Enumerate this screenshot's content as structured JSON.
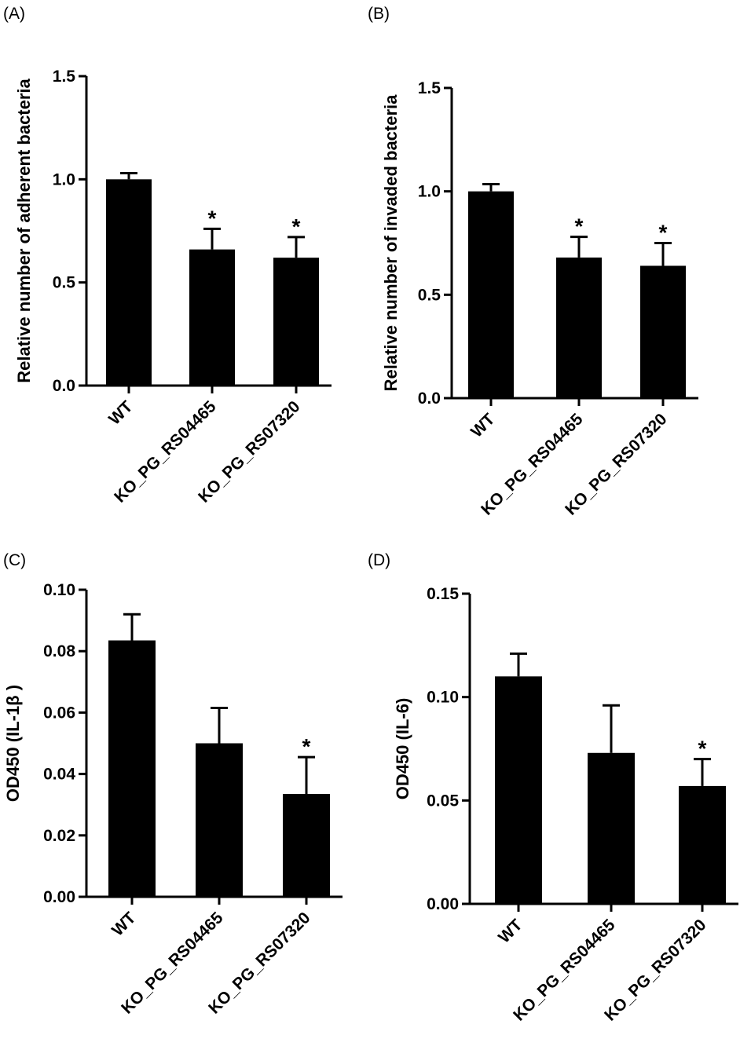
{
  "chart_data": [
    {
      "type": "bar",
      "panel_label": "(A)",
      "categories": [
        "WT",
        "KO_PG_RS04465",
        "KO_PG_RS07320"
      ],
      "values": [
        1.0,
        0.66,
        0.62
      ],
      "errors": [
        0.03,
        0.1,
        0.1
      ],
      "significance": [
        "",
        "*",
        "*"
      ],
      "ylabel": "Relative number of adherent bacteria",
      "ylim": [
        0,
        1.5
      ],
      "yticks": [
        0.0,
        0.5,
        1.0,
        1.5
      ],
      "ytick_labels": [
        "0.0",
        "0.5",
        "1.0",
        "1.5"
      ],
      "bar_color": "#000000",
      "grid": false
    },
    {
      "type": "bar",
      "panel_label": "(B)",
      "categories": [
        "WT",
        "KO_PG_RS04465",
        "KO_PG_RS07320"
      ],
      "values": [
        1.0,
        0.68,
        0.64
      ],
      "errors": [
        0.035,
        0.1,
        0.11
      ],
      "significance": [
        "",
        "*",
        "*"
      ],
      "ylabel": "Relative number of invaded bacteria",
      "ylim": [
        0,
        1.5
      ],
      "yticks": [
        0.0,
        0.5,
        1.0,
        1.5
      ],
      "ytick_labels": [
        "0.0",
        "0.5",
        "1.0",
        "1.5"
      ],
      "bar_color": "#000000",
      "grid": false
    },
    {
      "type": "bar",
      "panel_label": "(C)",
      "categories": [
        "WT",
        "KO_PG_RS04465",
        "KO_PG_RS07320"
      ],
      "values": [
        0.0835,
        0.05,
        0.0335
      ],
      "errors": [
        0.0085,
        0.0115,
        0.012
      ],
      "significance": [
        "",
        "",
        "*"
      ],
      "ylabel": "OD450 (IL-1β )",
      "ylim": [
        0,
        0.1
      ],
      "yticks": [
        0.0,
        0.02,
        0.04,
        0.06,
        0.08,
        0.1
      ],
      "ytick_labels": [
        "0.00",
        "0.02",
        "0.04",
        "0.06",
        "0.08",
        "0.10"
      ],
      "bar_color": "#000000",
      "grid": false
    },
    {
      "type": "bar",
      "panel_label": "(D)",
      "categories": [
        "WT",
        "KO_PG_RS04465",
        "KO_PG_RS07320"
      ],
      "values": [
        0.11,
        0.073,
        0.057
      ],
      "errors": [
        0.011,
        0.023,
        0.013
      ],
      "significance": [
        "",
        "",
        "*"
      ],
      "ylabel": "OD450 (IL-6)",
      "ylim": [
        0,
        0.15
      ],
      "yticks": [
        0.0,
        0.05,
        0.1,
        0.15
      ],
      "ytick_labels": [
        "0.00",
        "0.05",
        "0.10",
        "0.15"
      ],
      "bar_color": "#000000",
      "grid": false
    }
  ]
}
